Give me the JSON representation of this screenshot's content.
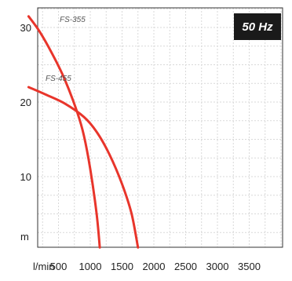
{
  "chart_data": {
    "type": "line",
    "title": "",
    "xlabel": "l/min",
    "ylabel": "m",
    "xlim": [
      0,
      4300
    ],
    "ylim": [
      0,
      32.5
    ],
    "x_ticks": [
      500,
      1000,
      1500,
      2000,
      2500,
      3000,
      3500
    ],
    "x_tick_labels": [
      "500",
      "1000",
      "1500",
      "2000",
      "2500",
      "3000",
      "3500"
    ],
    "y_ticks": [
      10,
      20,
      30
    ],
    "y_tick_labels": [
      "10",
      "20",
      "30"
    ],
    "grid": true,
    "badge": "50 Hz",
    "series": [
      {
        "name": "FS-355",
        "color": "#e8352b",
        "x": [
          30,
          200,
          400,
          600,
          800,
          900,
          1000,
          1100,
          1150
        ],
        "y": [
          31.5,
          29.5,
          26.5,
          23.0,
          18.5,
          15.5,
          11.0,
          5.0,
          0.5
        ]
      },
      {
        "name": "FS-455",
        "color": "#e8352b",
        "x": [
          30,
          300,
          600,
          900,
          1100,
          1300,
          1500,
          1650,
          1750
        ],
        "y": [
          22.0,
          21.0,
          19.8,
          18.0,
          16.0,
          13.0,
          9.0,
          5.0,
          0.5
        ]
      }
    ]
  }
}
